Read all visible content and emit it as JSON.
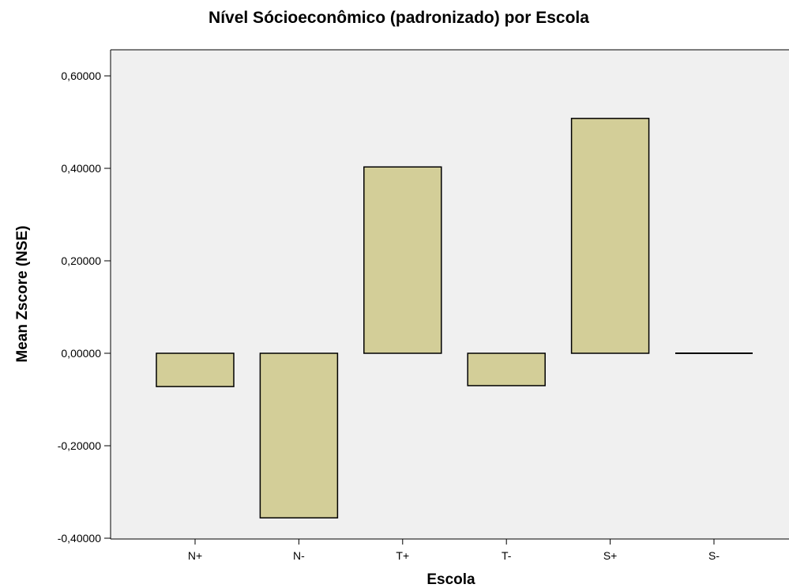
{
  "chart_data": {
    "type": "bar",
    "title": "Nível Sócioeconômico (padronizado) por Escola",
    "xlabel": "Escola",
    "ylabel": "Mean Zscore (NSE)",
    "categories": [
      "N+",
      "N-",
      "T+",
      "T-",
      "S+",
      "S-"
    ],
    "values": [
      -0.072,
      -0.356,
      0.403,
      -0.07,
      0.508,
      0.0
    ],
    "ylim": [
      -0.4,
      0.66
    ],
    "yticks": [
      -0.4,
      -0.2,
      0.0,
      0.2,
      0.4,
      0.6
    ],
    "ytick_labels": [
      "-0,40000",
      "-0,20000",
      "0,00000",
      "0,20000",
      "0,40000",
      "0,60000"
    ],
    "grid": false,
    "legend": "none",
    "colors": {
      "bar_fill": "#d3ce98",
      "bar_stroke": "#000000",
      "plot_background": "#f0f0f0"
    }
  }
}
